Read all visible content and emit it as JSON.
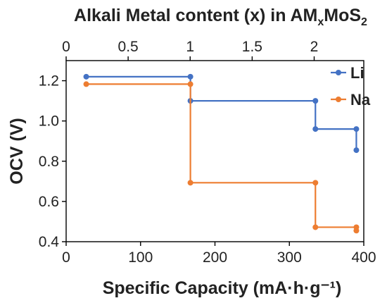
{
  "chart_data": {
    "type": "line",
    "xlabel": "Specific Capacity (mA·h·g⁻¹)",
    "ylabel": "OCV (V)",
    "x2label_parts": [
      "Alkali Metal content (x) in AM",
      "x",
      "MoS",
      "2"
    ],
    "xlim": [
      0,
      400
    ],
    "ylim": [
      0.4,
      1.3
    ],
    "x2lim": [
      0,
      2.4
    ],
    "xticks": [
      0,
      100,
      200,
      300,
      400
    ],
    "yticks": [
      "0.4",
      "0.6",
      "0.8",
      "1.0",
      "1.2"
    ],
    "x2ticks": [
      "0",
      "0.5",
      "1",
      "1.5",
      "2"
    ],
    "legend_position": "top-right",
    "grid": false,
    "series": [
      {
        "name": "Li",
        "color": "#4472C4",
        "steps": [
          [
            27,
            1.22
          ],
          [
            167,
            1.22
          ],
          [
            167,
            1.1
          ],
          [
            335,
            1.1
          ],
          [
            335,
            0.96
          ],
          [
            390,
            0.96
          ],
          [
            390,
            0.855
          ]
        ],
        "markers": [
          [
            27,
            1.22
          ],
          [
            167,
            1.22
          ],
          [
            167,
            1.1
          ],
          [
            335,
            1.1
          ],
          [
            335,
            0.96
          ],
          [
            390,
            0.96
          ],
          [
            390,
            0.855
          ]
        ]
      },
      {
        "name": "Na",
        "color": "#ED7D31",
        "steps": [
          [
            27,
            1.183
          ],
          [
            167,
            1.183
          ],
          [
            167,
            0.693
          ],
          [
            335,
            0.693
          ],
          [
            335,
            0.472
          ],
          [
            390,
            0.472
          ],
          [
            390,
            0.455
          ]
        ],
        "markers": [
          [
            27,
            1.183
          ],
          [
            167,
            1.183
          ],
          [
            167,
            0.693
          ],
          [
            335,
            0.693
          ],
          [
            335,
            0.472
          ],
          [
            390,
            0.472
          ],
          [
            390,
            0.455
          ]
        ]
      }
    ]
  }
}
